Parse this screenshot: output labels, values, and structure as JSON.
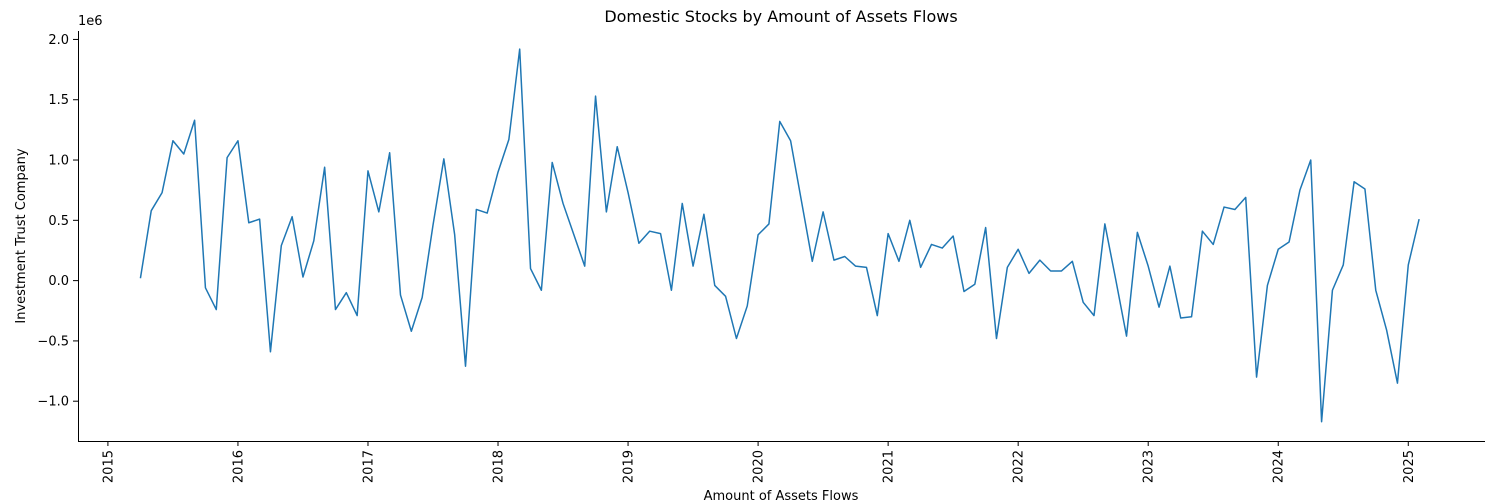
{
  "chart_data": {
    "type": "line",
    "title": "Domestic Stocks by Amount of Assets Flows",
    "xlabel": "Amount of Assets Flows",
    "ylabel": "Investment Trust Company",
    "y_offset_label": "1e6",
    "y_scale": 1000000,
    "xlim": [
      2014.77,
      2025.59
    ],
    "ylim": [
      -1.33,
      2.07
    ],
    "x_ticks": [
      2015,
      2016,
      2017,
      2018,
      2019,
      2020,
      2021,
      2022,
      2023,
      2024,
      2025
    ],
    "x_tick_labels": [
      "2015",
      "2016",
      "2017",
      "2018",
      "2019",
      "2020",
      "2021",
      "2022",
      "2023",
      "2024",
      "2025"
    ],
    "y_ticks": [
      -1.0,
      -0.5,
      0.0,
      0.5,
      1.0,
      1.5,
      2.0
    ],
    "y_tick_labels": [
      "−1.0",
      "−0.5",
      "0.0",
      "0.5",
      "1.0",
      "1.5",
      "2.0"
    ],
    "grid": false,
    "line_color": "#1f77b4",
    "series": [
      {
        "name": "",
        "x_start": "2015-04",
        "x_end": "2025-02",
        "x_step": "1 month",
        "values": [
          0.02,
          0.58,
          0.73,
          1.16,
          1.05,
          1.33,
          -0.06,
          -0.24,
          1.02,
          1.16,
          0.48,
          0.51,
          -0.59,
          0.29,
          0.53,
          0.03,
          0.33,
          0.94,
          -0.24,
          -0.1,
          -0.29,
          0.91,
          0.57,
          1.06,
          -0.12,
          -0.42,
          -0.14,
          0.46,
          1.01,
          0.38,
          -0.71,
          0.59,
          0.56,
          0.9,
          1.17,
          1.92,
          0.1,
          -0.08,
          0.98,
          0.64,
          0.38,
          0.12,
          1.53,
          0.57,
          1.11,
          0.73,
          0.31,
          0.41,
          0.39,
          -0.08,
          0.64,
          0.12,
          0.55,
          -0.04,
          -0.13,
          -0.48,
          -0.21,
          0.38,
          0.47,
          1.32,
          1.16,
          0.66,
          0.16,
          0.57,
          0.17,
          0.2,
          0.12,
          0.11,
          -0.29,
          0.39,
          0.16,
          0.5,
          0.11,
          0.3,
          0.27,
          0.37,
          -0.09,
          -0.03,
          0.44,
          -0.48,
          0.11,
          0.26,
          0.06,
          0.17,
          0.08,
          0.08,
          0.16,
          -0.18,
          -0.29,
          0.47,
          0.01,
          -0.46,
          0.4,
          0.12,
          -0.22,
          0.12,
          -0.31,
          -0.3,
          0.41,
          0.3,
          0.61,
          0.59,
          0.69,
          -0.8,
          -0.04,
          0.26,
          0.32,
          0.75,
          1.0,
          -1.17,
          -0.08,
          0.13,
          0.82,
          0.76,
          -0.08,
          -0.41,
          -0.85,
          0.13,
          0.51
        ]
      }
    ]
  }
}
